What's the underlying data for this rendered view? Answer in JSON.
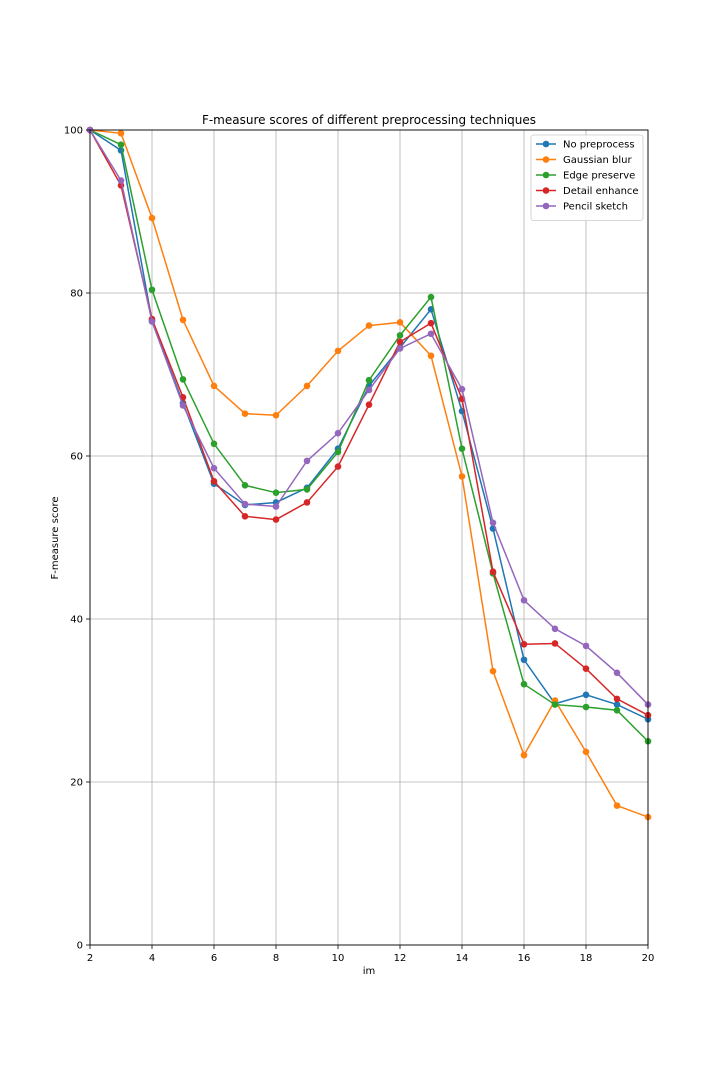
{
  "chart_data": {
    "type": "line",
    "title": "F-measure scores of different preprocessing techniques",
    "xlabel": "im",
    "ylabel": "F-measure score",
    "xlim": [
      2,
      20
    ],
    "ylim": [
      0,
      100
    ],
    "xticks": [
      2,
      4,
      6,
      8,
      10,
      12,
      14,
      16,
      18,
      20
    ],
    "yticks": [
      0,
      20,
      40,
      60,
      80,
      100
    ],
    "grid": true,
    "legend_position": "top-right",
    "x": [
      2,
      3,
      4,
      5,
      6,
      7,
      8,
      9,
      10,
      11,
      12,
      13,
      14,
      15,
      16,
      17,
      18,
      19,
      20
    ],
    "series": [
      {
        "name": "No preprocess",
        "color": "#1f77b4",
        "values": [
          100,
          97.5,
          76.6,
          66.5,
          56.6,
          54.0,
          54.3,
          56.1,
          60.9,
          68.6,
          73.3,
          78.0,
          65.5,
          51.1,
          35.0,
          29.6,
          30.7,
          29.5,
          27.7
        ]
      },
      {
        "name": "Gaussian blur",
        "color": "#ff7f0e",
        "values": [
          100,
          99.6,
          89.2,
          76.7,
          68.6,
          65.2,
          65.0,
          68.6,
          72.9,
          76.0,
          76.4,
          72.3,
          57.5,
          33.6,
          23.3,
          30.0,
          23.7,
          17.1,
          15.7
        ]
      },
      {
        "name": "Edge preserve",
        "color": "#2ca02c",
        "values": [
          100,
          98.2,
          80.4,
          69.4,
          61.5,
          56.4,
          55.5,
          55.9,
          60.5,
          69.3,
          74.8,
          79.5,
          60.9,
          45.6,
          32.0,
          29.5,
          29.2,
          28.8,
          25.0
        ]
      },
      {
        "name": "Detail enhance",
        "color": "#d62728",
        "values": [
          100,
          93.2,
          76.8,
          67.2,
          56.9,
          52.6,
          52.2,
          54.3,
          58.7,
          66.3,
          74.0,
          76.3,
          67.0,
          45.8,
          36.9,
          37.0,
          33.9,
          30.2,
          28.2
        ]
      },
      {
        "name": "Pencil sketch",
        "color": "#9467bd",
        "values": [
          100,
          93.8,
          76.5,
          66.2,
          58.5,
          54.1,
          53.8,
          59.4,
          62.8,
          68.1,
          73.2,
          75.0,
          68.2,
          51.8,
          42.3,
          38.8,
          36.7,
          33.4,
          29.5
        ]
      }
    ]
  }
}
